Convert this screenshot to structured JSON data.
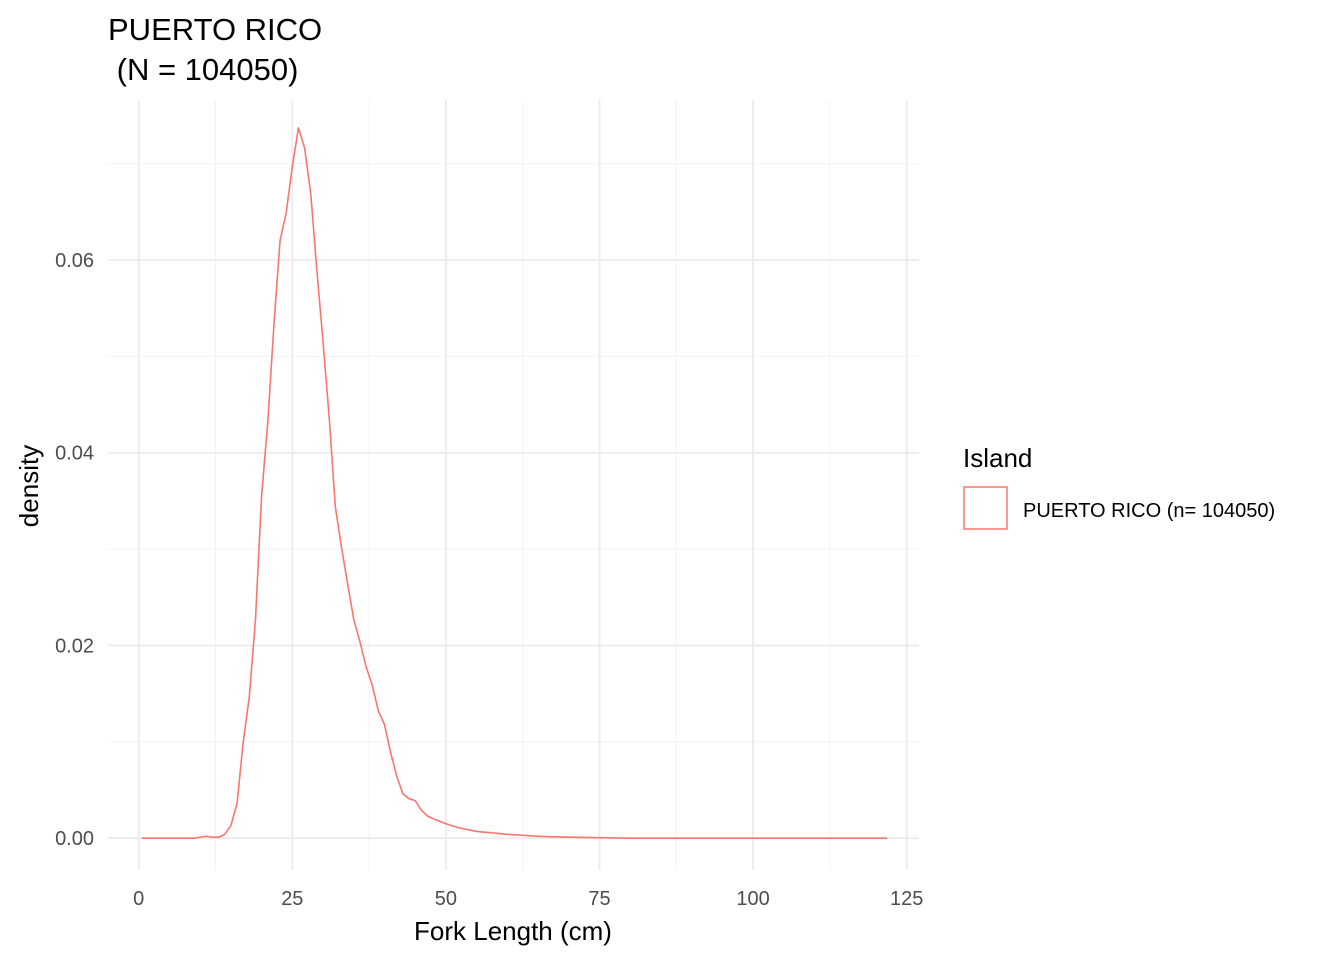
{
  "chart_data": {
    "type": "area",
    "title": "PUERTO RICO",
    "subtitle": "(N = 104050)",
    "xlabel": "Fork Length (cm)",
    "ylabel": "density",
    "xlim": [
      -5,
      127
    ],
    "ylim": [
      -0.0033,
      0.0766
    ],
    "x_ticks": [
      0,
      25,
      50,
      75,
      100,
      125
    ],
    "x_tick_labels": [
      "0",
      "25",
      "50",
      "75",
      "100",
      "125"
    ],
    "y_ticks": [
      0.0,
      0.02,
      0.04,
      0.06
    ],
    "y_tick_labels": [
      "0.00",
      "0.02",
      "0.04",
      "0.06"
    ],
    "grid": true,
    "legend": {
      "title": "Island",
      "position": "right",
      "entries": [
        "PUERTO RICO (n= 104050)"
      ]
    },
    "series": [
      {
        "name": "PUERTO RICO (n= 104050)",
        "color": "#F8766D",
        "fill": "none",
        "x": [
          0.5,
          5,
          9,
          10,
          11,
          12,
          13,
          14,
          15,
          16,
          17,
          18,
          19,
          20,
          21,
          22,
          23,
          24,
          25,
          26,
          27,
          28,
          29,
          30,
          31,
          32,
          33,
          34,
          35,
          36,
          37,
          38,
          39,
          40,
          41,
          42,
          43,
          44,
          45,
          46,
          47,
          48,
          50,
          52,
          55,
          60,
          65,
          70,
          80,
          100,
          121.8
        ],
        "y": [
          0.0,
          0.0,
          0.0,
          0.0001,
          0.0002,
          0.0001,
          0.0001,
          0.0004,
          0.0013,
          0.0036,
          0.0099,
          0.0147,
          0.0226,
          0.0355,
          0.0431,
          0.0532,
          0.062,
          0.0649,
          0.0697,
          0.0737,
          0.0716,
          0.0669,
          0.0589,
          0.0515,
          0.0437,
          0.0344,
          0.0302,
          0.0264,
          0.0227,
          0.0204,
          0.0178,
          0.0159,
          0.0132,
          0.0118,
          0.0089,
          0.0064,
          0.0046,
          0.0041,
          0.0039,
          0.0029,
          0.0023,
          0.002,
          0.0015,
          0.0011,
          0.0007,
          0.0004,
          0.0002,
          0.0001,
          0.0,
          0.0,
          0.0
        ]
      }
    ]
  }
}
